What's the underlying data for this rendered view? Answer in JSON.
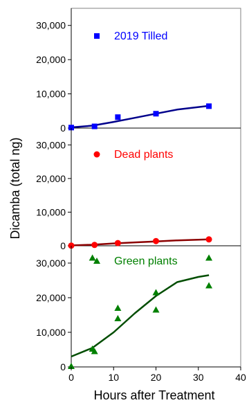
{
  "chart_data": {
    "type": "scatter",
    "ylabel": "Dicamba (total ng)",
    "xlabel": "Hours after Treatment",
    "xlim": [
      0,
      40
    ],
    "x_ticks": [
      "0",
      "10",
      "20",
      "30",
      "40"
    ],
    "ylim": [
      0,
      35000
    ],
    "y_ticks": [
      "0",
      "10,000",
      "20,000",
      "30,000"
    ],
    "grid": false,
    "panels": [
      {
        "name": "2019 Tilled",
        "color": "#0000ff",
        "marker": "square",
        "line_color": "#00008b",
        "points": [
          [
            0,
            150
          ],
          [
            5.5,
            500
          ],
          [
            11,
            3200
          ],
          [
            20,
            4200
          ],
          [
            32.5,
            6400
          ]
        ],
        "fit": [
          [
            0,
            200
          ],
          [
            5,
            700
          ],
          [
            10,
            1800
          ],
          [
            15,
            3000
          ],
          [
            20,
            4200
          ],
          [
            25,
            5400
          ],
          [
            32.5,
            6500
          ]
        ]
      },
      {
        "name": "Dead plants",
        "color": "#ff0000",
        "marker": "circle",
        "line_color": "#8b0000",
        "points": [
          [
            0,
            50
          ],
          [
            5.5,
            250
          ],
          [
            11,
            800
          ],
          [
            20,
            1400
          ],
          [
            32.5,
            1900
          ]
        ],
        "fit": [
          [
            0,
            100
          ],
          [
            5,
            300
          ],
          [
            10,
            700
          ],
          [
            15,
            1000
          ],
          [
            20,
            1300
          ],
          [
            25,
            1600
          ],
          [
            32.5,
            1900
          ]
        ]
      },
      {
        "name": "Green plants",
        "color": "#008000",
        "marker": "triangle",
        "line_color": "#004d00",
        "points": [
          [
            0,
            200
          ],
          [
            5,
            5200
          ],
          [
            5.5,
            4500
          ],
          [
            5,
            31500
          ],
          [
            11,
            14000
          ],
          [
            11,
            17000
          ],
          [
            20,
            21500
          ],
          [
            20,
            16500
          ],
          [
            32.5,
            23500
          ],
          [
            32.5,
            31500
          ]
        ],
        "fit": [
          [
            0,
            3000
          ],
          [
            5,
            5500
          ],
          [
            10,
            10000
          ],
          [
            15,
            15500
          ],
          [
            20,
            20500
          ],
          [
            25,
            24500
          ],
          [
            30,
            26000
          ],
          [
            32.5,
            26500
          ]
        ]
      }
    ]
  }
}
